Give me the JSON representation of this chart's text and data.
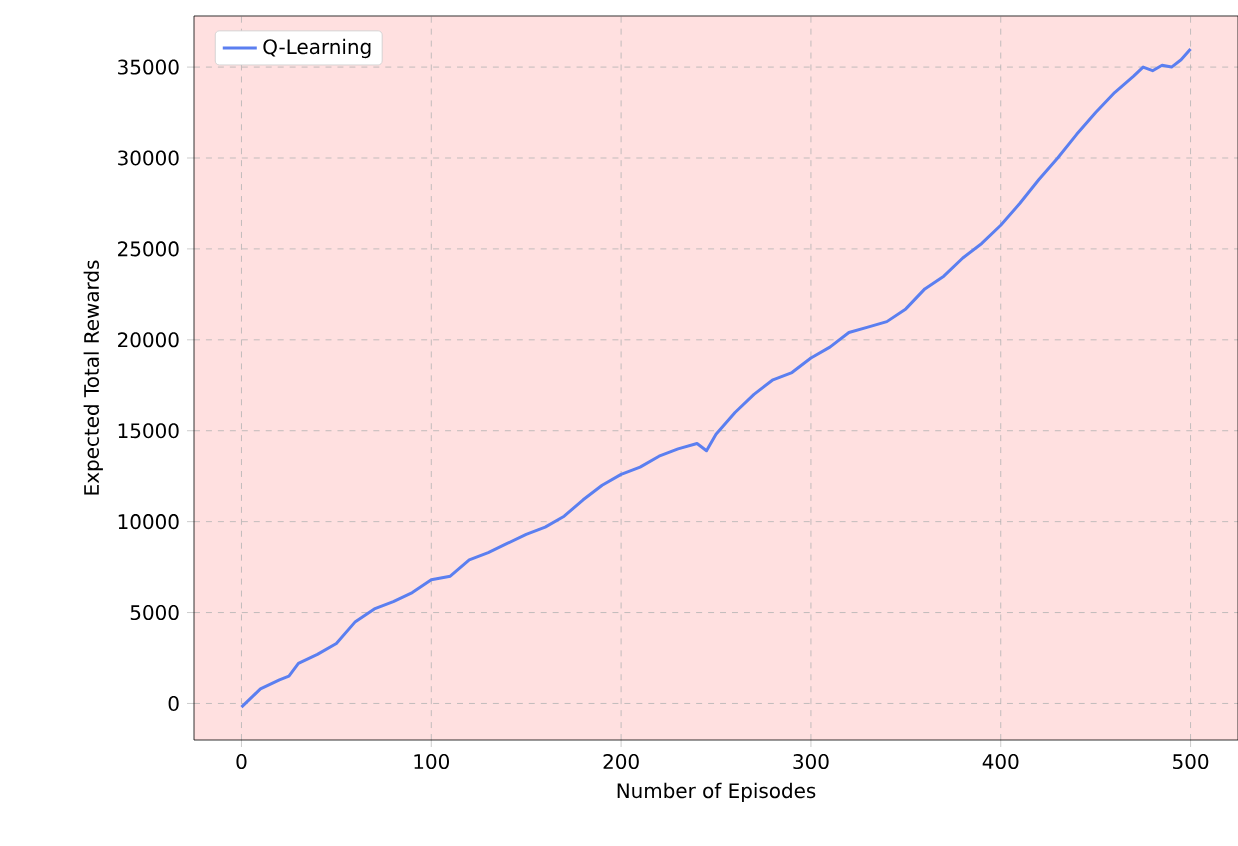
{
  "chart_data": {
    "type": "line",
    "xlabel": "Number of Episodes",
    "ylabel": "Expected Total Rewards",
    "x": [
      0,
      10,
      20,
      25,
      30,
      40,
      50,
      60,
      70,
      80,
      90,
      100,
      110,
      120,
      130,
      140,
      150,
      160,
      170,
      180,
      190,
      200,
      210,
      220,
      230,
      240,
      245,
      250,
      260,
      270,
      280,
      290,
      300,
      310,
      320,
      330,
      340,
      350,
      360,
      370,
      380,
      390,
      400,
      410,
      420,
      430,
      440,
      450,
      460,
      470,
      475,
      480,
      485,
      490,
      495,
      500
    ],
    "series": [
      {
        "name": "Q-Learning",
        "color": "#5b7ff0",
        "values": [
          -200,
          800,
          1300,
          1500,
          2200,
          2700,
          3300,
          4500,
          5200,
          5600,
          6100,
          6800,
          7000,
          7900,
          8300,
          8800,
          9300,
          9700,
          10300,
          11200,
          12000,
          12600,
          13000,
          13600,
          14000,
          14300,
          13900,
          14800,
          16000,
          17000,
          17800,
          18200,
          19000,
          19600,
          20400,
          20700,
          21000,
          21700,
          22800,
          23500,
          24500,
          25300,
          26300,
          27500,
          28800,
          30000,
          31300,
          32500,
          33600,
          34500,
          35000,
          34800,
          35100,
          35000,
          35400,
          36000
        ]
      }
    ],
    "xlim": [
      -25,
      525
    ],
    "ylim": [
      -2010,
      37810
    ],
    "xticks": [
      0,
      100,
      200,
      300,
      400,
      500
    ],
    "yticks": [
      0,
      5000,
      10000,
      15000,
      20000,
      25000,
      30000,
      35000
    ],
    "grid": true,
    "legend": "top left"
  }
}
